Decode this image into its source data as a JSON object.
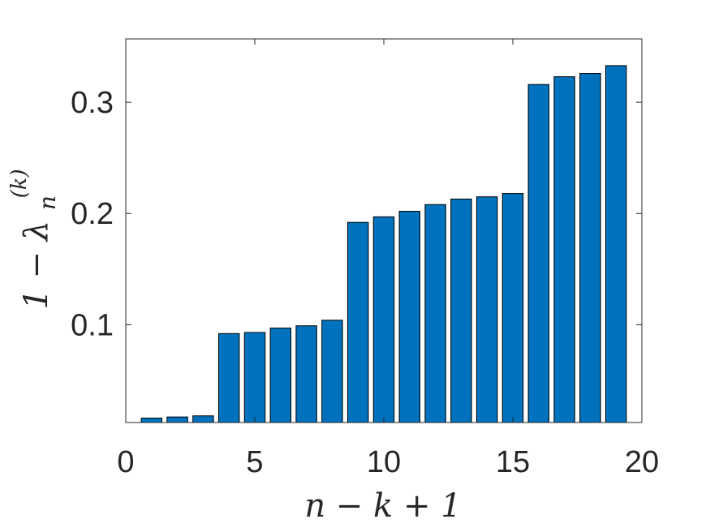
{
  "chart_data": {
    "type": "bar",
    "title": "",
    "xlabel": "n − k + 1",
    "ylabel": "1 − λ",
    "ylabel_superscript": "(k)",
    "ylabel_subscript": "n",
    "x": [
      1,
      2,
      3,
      4,
      5,
      6,
      7,
      8,
      9,
      10,
      11,
      12,
      13,
      14,
      15,
      16,
      17,
      18,
      19
    ],
    "values": [
      0.016,
      0.017,
      0.018,
      0.092,
      0.093,
      0.097,
      0.099,
      0.104,
      0.192,
      0.197,
      0.202,
      0.208,
      0.213,
      0.215,
      0.218,
      0.316,
      0.323,
      0.326,
      0.333
    ],
    "xlim": [
      0,
      20
    ],
    "ylim": [
      0.012,
      0.357
    ],
    "xticks": [
      0,
      5,
      10,
      15,
      20
    ],
    "yticks": [
      0.1,
      0.2,
      0.3
    ],
    "xtick_labels": [
      "0",
      "5",
      "10",
      "15",
      "20"
    ],
    "ytick_labels": [
      "0.1",
      "0.2",
      "0.3"
    ],
    "grid": false,
    "legend": "none",
    "bar_color": "#0072BD",
    "edge_color": "#000000"
  }
}
